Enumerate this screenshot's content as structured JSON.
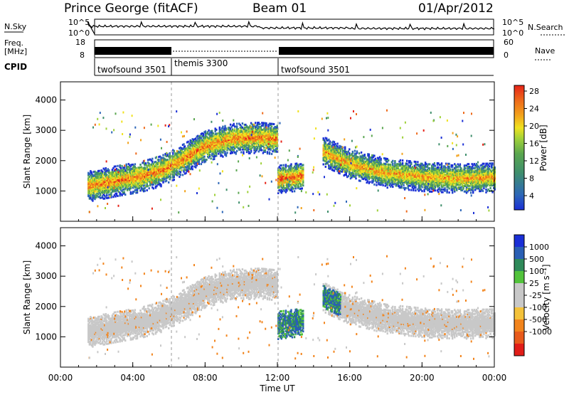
{
  "header": {
    "station": "Prince George (fitACF)",
    "beam": "Beam 01",
    "date": "01/Apr/2012"
  },
  "summary": {
    "nsky_label": "N.Sky",
    "nsky_ticks": [
      "10^5",
      "10^0"
    ],
    "nsearch_label": "N.Search",
    "nsearch_ticks": [
      "10^5",
      "10^0"
    ],
    "freq_label": [
      "Freq.",
      "[MHz]"
    ],
    "freq_ticks": [
      "18",
      "8"
    ],
    "nave_label": "Nave",
    "nave_ticks": [
      "60",
      "0"
    ],
    "cpid_label": "CPID",
    "cpid_segments": [
      {
        "name": "twofsound 3501",
        "start_h": 1.5,
        "end_h": 6.0
      },
      {
        "name": "themis 3300",
        "start_h": 6.0,
        "end_h": 12.0
      },
      {
        "name": "twofsound 3501",
        "start_h": 12.0,
        "end_h": 24.0
      }
    ]
  },
  "chart_data": [
    {
      "type": "heatmap",
      "quantity": "Power",
      "ylabel": "Slant Range [km]",
      "xlabel": "Time UT",
      "x_ticks": [
        "00:00",
        "04:00",
        "08:00",
        "12:00",
        "16:00",
        "20:00",
        "00:00"
      ],
      "xlim_hours": [
        0,
        24
      ],
      "ylim": [
        0,
        4600
      ],
      "y_ticks": [
        1000,
        2000,
        3000,
        4000
      ],
      "colorbar": {
        "label": "Power [dB]",
        "ticks": [
          "4",
          "8",
          "12",
          "16",
          "20",
          "24",
          "28"
        ],
        "colors": [
          "#1a2fd6",
          "#2d67b8",
          "#3f8f6c",
          "#5aa64f",
          "#9fd13a",
          "#f0e21f",
          "#f2a21b",
          "#ee6a1b",
          "#e62318"
        ]
      },
      "echo_bands": [
        {
          "t": [
            1.5,
            3,
            4.5,
            5.5,
            6.5,
            8,
            9.5,
            11,
            12
          ],
          "r": [
            1150,
            1320,
            1480,
            1650,
            1950,
            2480,
            2720,
            2760,
            2700
          ],
          "width_km": 320,
          "level": 0.82
        },
        {
          "t": [
            12,
            12.4,
            13,
            13.4
          ],
          "r": [
            1380,
            1410,
            1450,
            1500
          ],
          "width_km": 290,
          "level": 0.9
        },
        {
          "t": [
            14.5,
            16,
            18,
            20,
            22,
            24
          ],
          "r": [
            2300,
            1880,
            1580,
            1460,
            1400,
            1430
          ],
          "width_km": 300,
          "level": 0.75
        }
      ]
    },
    {
      "type": "heatmap",
      "quantity": "Velocity",
      "ylabel": "Slant Range [km]",
      "xlabel": "Time UT",
      "x_ticks": [
        "00:00",
        "04:00",
        "08:00",
        "12:00",
        "16:00",
        "20:00",
        "00:00"
      ],
      "xlim_hours": [
        0,
        24
      ],
      "ylim": [
        0,
        4600
      ],
      "y_ticks": [
        1000,
        2000,
        3000,
        4000
      ],
      "colorbar": {
        "label": "Velocity [m s⁻¹]",
        "ticks": [
          "1000",
          "500",
          "100",
          "25",
          "-25",
          "-100",
          "-500",
          "-1000"
        ],
        "colors": [
          "#1a2fd6",
          "#2a5fb4",
          "#2f8a5a",
          "#52c33b",
          "#c8c8c8",
          "#c8c8c8",
          "#f4c23a",
          "#f2841c",
          "#e85a1b",
          "#e11d18"
        ]
      },
      "ground_scatter_color": "#c8c8c8"
    }
  ]
}
